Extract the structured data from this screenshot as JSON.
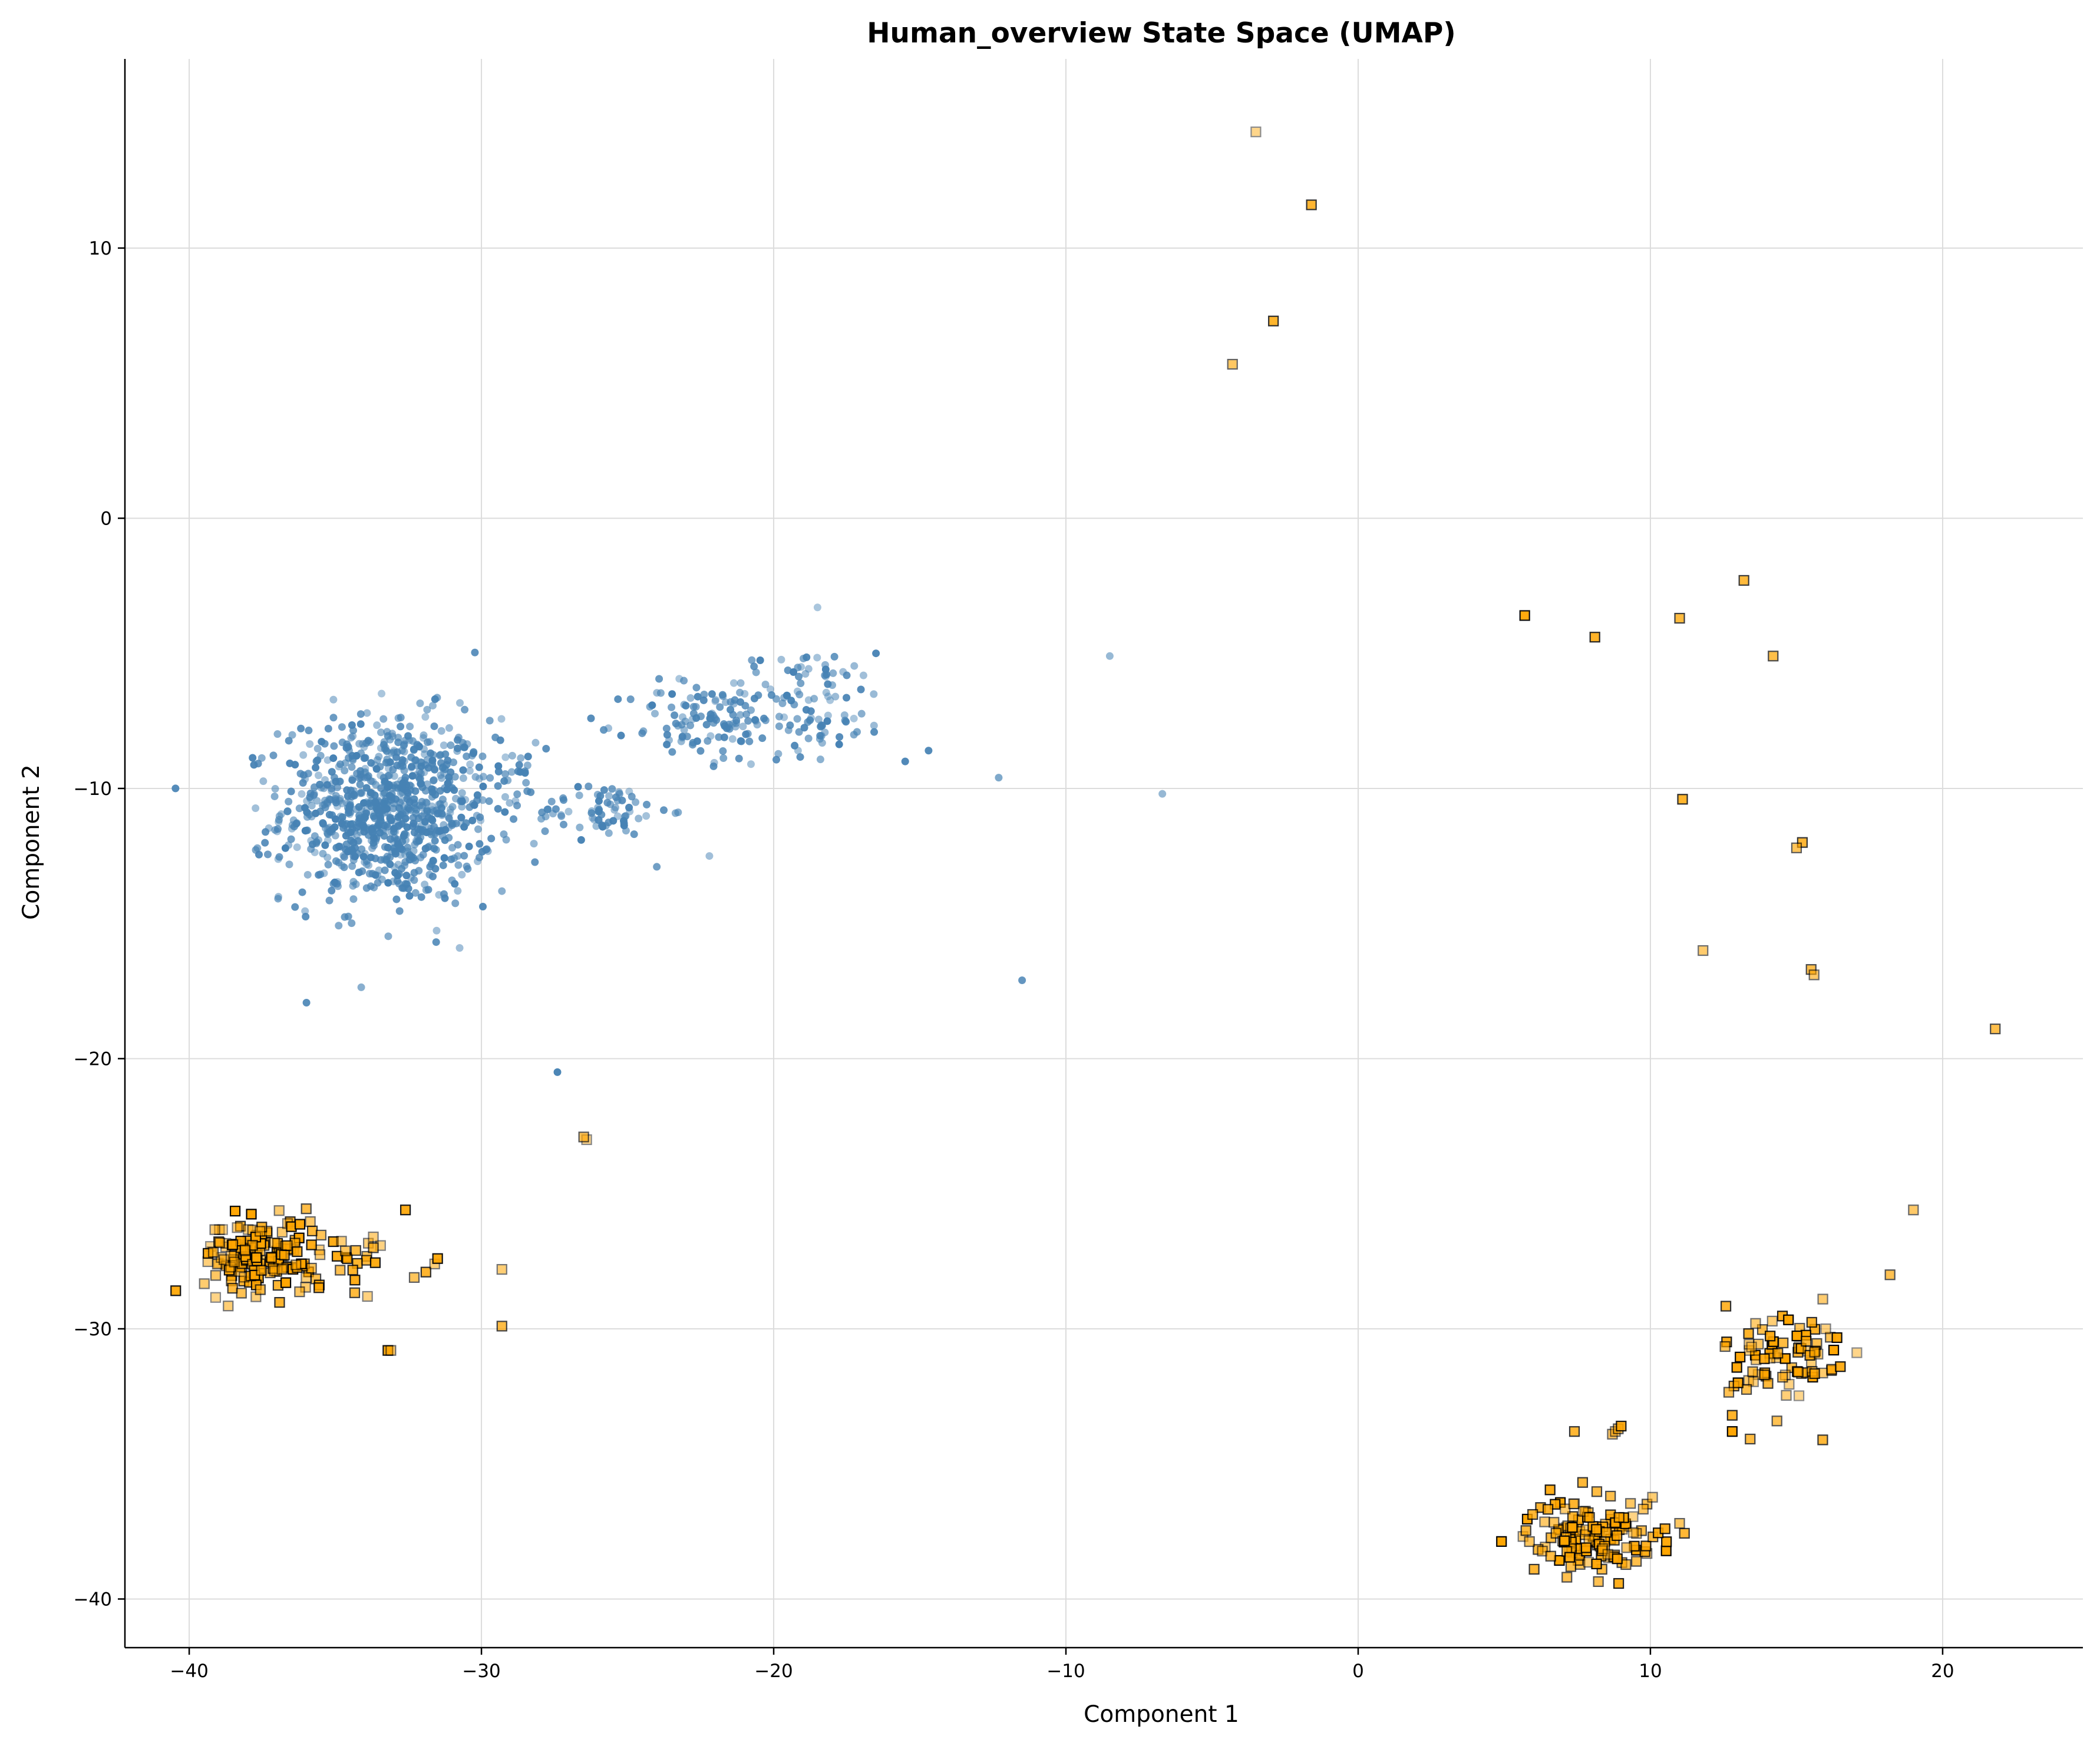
{
  "chart_data": {
    "type": "scatter",
    "title": "Human_overview State Space (UMAP)",
    "xlabel": "Component 1",
    "ylabel": "Component 2",
    "xlim": [
      -42.2,
      24.8
    ],
    "ylim": [
      -41.8,
      17.0
    ],
    "x_ticks": [
      -40,
      -30,
      -20,
      -10,
      0,
      10,
      20
    ],
    "y_ticks": [
      -40,
      -30,
      -20,
      -10,
      0,
      10
    ],
    "x_tick_labels": [
      "−40",
      "−30",
      "−20",
      "−10",
      "0",
      "10",
      "20"
    ],
    "y_tick_labels": [
      "−40",
      "−30",
      "−20",
      "−10",
      "0",
      "10"
    ],
    "grid": true,
    "legend": "none",
    "series": [
      {
        "color": "#4682b4",
        "marker": "circle",
        "clusters": [
          {
            "center": [
              -33.2,
              -10.8
            ],
            "spread": [
              1.8,
              1.7
            ],
            "count": 900
          },
          {
            "center": [
              -25.8,
              -10.8
            ],
            "spread": [
              1.1,
              0.5
            ],
            "count": 70
          },
          {
            "center": [
              -22.5,
              -7.6
            ],
            "spread": [
              1.2,
              0.8
            ],
            "count": 90
          },
          {
            "center": [
              -19.0,
              -6.8
            ],
            "spread": [
              1.5,
              1.0
            ],
            "count": 120
          },
          {
            "center": [
              -29.0,
              -9.3
            ],
            "spread": [
              0.6,
              0.5
            ],
            "count": 20
          }
        ],
        "points": [
          [
            -18.5,
            -3.3
          ],
          [
            -16.5,
            -5.0
          ],
          [
            -15.5,
            -9.0
          ],
          [
            -14.7,
            -8.6
          ],
          [
            -12.3,
            -9.6
          ],
          [
            -8.5,
            -5.1
          ],
          [
            -6.7,
            -10.2
          ],
          [
            -11.5,
            -17.1
          ],
          [
            -27.4,
            -20.5
          ],
          [
            -24.0,
            -12.9
          ],
          [
            -22.2,
            -12.5
          ],
          [
            -29.3,
            -13.8
          ]
        ]
      },
      {
        "color": "#ffa500",
        "marker": "square",
        "clusters": [
          {
            "center": [
              -37.5,
              -27.3
            ],
            "spread": [
              1.0,
              0.7
            ],
            "count": 160
          },
          {
            "center": [
              -34.8,
              -27.5
            ],
            "spread": [
              0.7,
              0.6
            ],
            "count": 18
          },
          {
            "center": [
              7.6,
              -37.7
            ],
            "spread": [
              0.9,
              0.7
            ],
            "count": 110
          },
          {
            "center": [
              9.4,
              -37.2
            ],
            "spread": [
              0.8,
              0.6
            ],
            "count": 30
          },
          {
            "center": [
              14.6,
              -31.2
            ],
            "spread": [
              1.0,
              1.1
            ],
            "count": 80
          }
        ],
        "points": [
          [
            -3.5,
            14.3
          ],
          [
            -1.6,
            11.6
          ],
          [
            -2.9,
            7.3
          ],
          [
            -4.3,
            5.7
          ],
          [
            5.7,
            -3.6
          ],
          [
            8.1,
            -4.4
          ],
          [
            11.0,
            -3.7
          ],
          [
            13.2,
            -2.3
          ],
          [
            14.2,
            -5.1
          ],
          [
            11.1,
            -10.4
          ],
          [
            15.2,
            -12.0
          ],
          [
            15.0,
            -12.2
          ],
          [
            11.8,
            -16.0
          ],
          [
            15.5,
            -16.7
          ],
          [
            15.6,
            -16.9
          ],
          [
            21.8,
            -18.9
          ],
          [
            19.0,
            -25.6
          ],
          [
            18.2,
            -28.0
          ],
          [
            -26.4,
            -23.0
          ],
          [
            -26.5,
            -22.9
          ],
          [
            -32.6,
            -25.6
          ],
          [
            -29.3,
            -27.8
          ],
          [
            -29.3,
            -29.9
          ],
          [
            -33.2,
            -30.8
          ],
          [
            -33.1,
            -30.8
          ],
          [
            -33.7,
            -26.6
          ],
          [
            -33.7,
            -27.0
          ],
          [
            -32.3,
            -28.1
          ],
          [
            -31.9,
            -27.9
          ],
          [
            -31.6,
            -27.6
          ],
          [
            -31.5,
            -27.4
          ],
          [
            -34.3,
            -27.1
          ],
          [
            -33.9,
            -28.8
          ],
          [
            7.4,
            -33.8
          ],
          [
            8.7,
            -33.9
          ],
          [
            8.8,
            -33.8
          ],
          [
            8.9,
            -33.7
          ],
          [
            9.0,
            -33.6
          ],
          [
            10.5,
            -37.4
          ],
          [
            11.0,
            -37.2
          ],
          [
            12.8,
            -33.8
          ],
          [
            12.8,
            -33.2
          ],
          [
            13.0,
            -32.0
          ],
          [
            13.6,
            -29.8
          ],
          [
            15.9,
            -28.9
          ],
          [
            16.0,
            -30.0
          ],
          [
            16.5,
            -31.4
          ]
        ]
      }
    ]
  }
}
